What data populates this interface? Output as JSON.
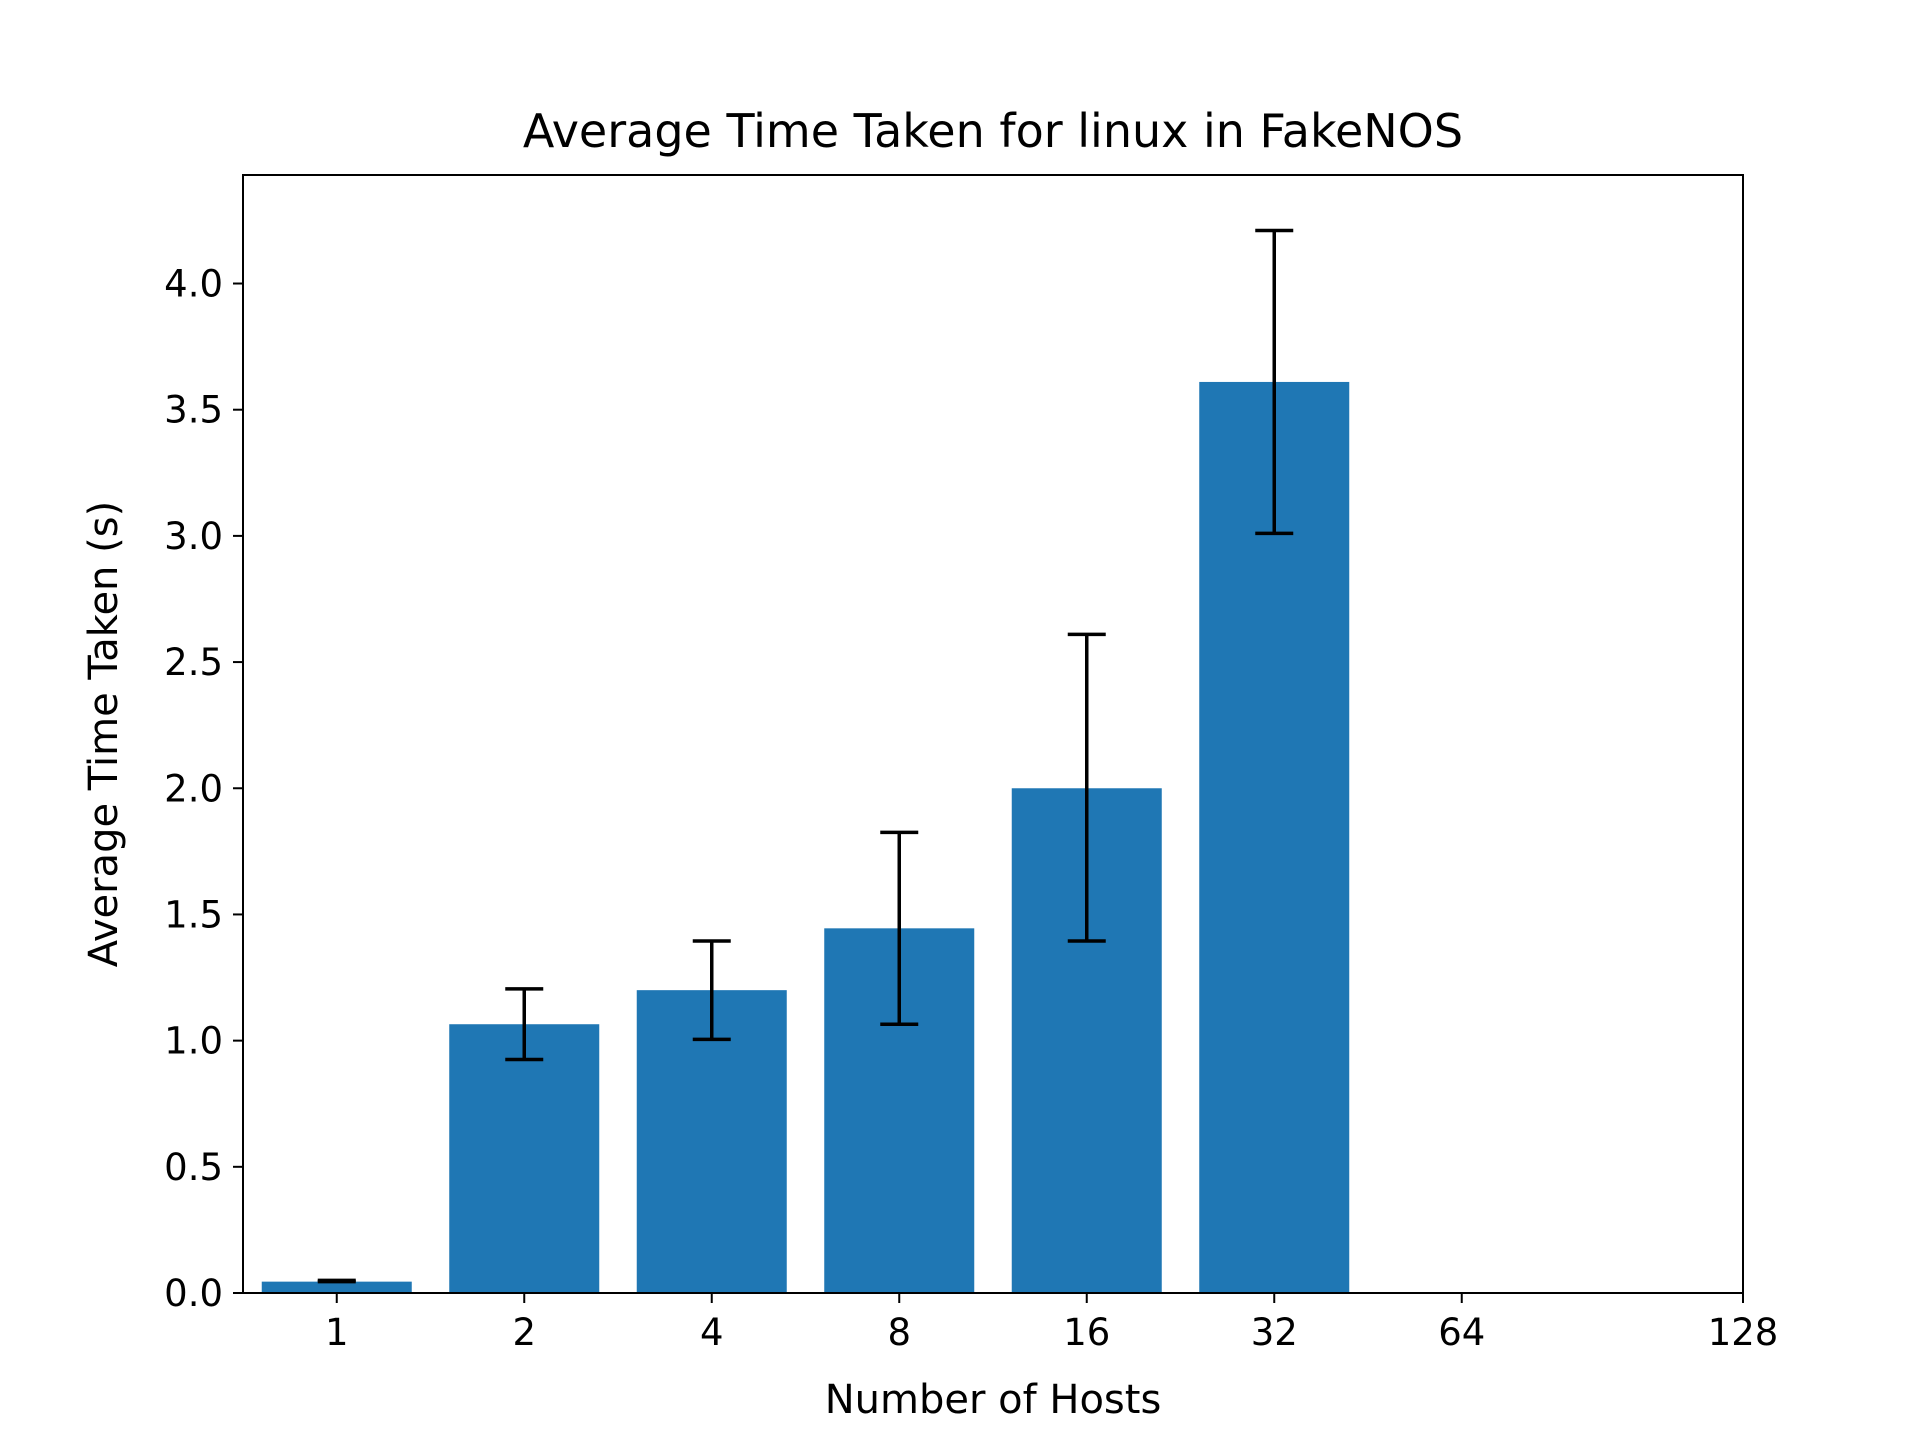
{
  "chart_data": {
    "type": "bar",
    "title": "Average Time Taken for linux in FakeNOS",
    "xlabel": "Number of Hosts",
    "ylabel": "Average Time Taken (s)",
    "categories": [
      "1",
      "2",
      "4",
      "8",
      "16",
      "32",
      "64",
      "128"
    ],
    "values": [
      0.045,
      1.065,
      1.2,
      1.445,
      2.0,
      3.61,
      null,
      null
    ],
    "error_low": [
      0.045,
      0.925,
      1.005,
      1.065,
      1.395,
      3.01,
      null,
      null
    ],
    "error_high": [
      0.05,
      1.205,
      1.395,
      1.825,
      2.61,
      4.21,
      null,
      null
    ],
    "ylim": [
      0,
      4.43
    ],
    "yticks": [
      "0.0",
      "0.5",
      "1.0",
      "1.5",
      "2.0",
      "2.5",
      "3.0",
      "3.5",
      "4.0"
    ],
    "grid": false,
    "colors": {
      "bar": "#1f77b4",
      "error_bar": "#000000",
      "axes": "#000000"
    }
  }
}
